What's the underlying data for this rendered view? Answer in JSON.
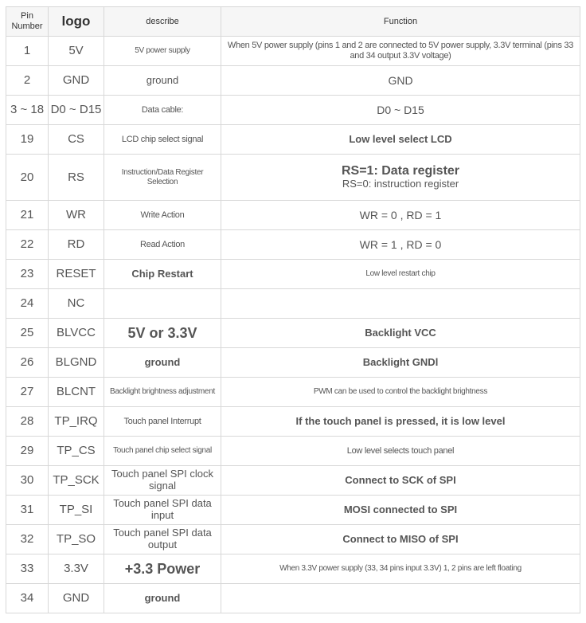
{
  "headers": [
    "Pin Number",
    "logo",
    "describe",
    "Function"
  ],
  "rows": [
    {
      "pin": "1",
      "logo": "5V",
      "describe": "5V power supply",
      "function": "When 5V power supply (pins 1 and 2 are connected to 5V power supply, 3.3V terminal (pins 33 and 34 output 3.3V voltage)"
    },
    {
      "pin": "2",
      "logo": "GND",
      "describe": "ground",
      "function": "GND"
    },
    {
      "pin": "3 ~ 18",
      "logo": "D0 ~ D15",
      "describe": "Data cable:",
      "function": "D0 ~ D15"
    },
    {
      "pin": "19",
      "logo": "CS",
      "describe": "LCD chip select signal",
      "function": "Low level select LCD"
    },
    {
      "pin": "20",
      "logo": "RS",
      "describe": "Instruction/Data Register Selection",
      "function": "RS=1: Data register",
      "function2": "RS=0: instruction register"
    },
    {
      "pin": "21",
      "logo": "WR",
      "describe": "Write Action",
      "function": "WR = 0 , RD = 1"
    },
    {
      "pin": "22",
      "logo": "RD",
      "describe": "Read Action",
      "function": "WR = 1 , RD = 0"
    },
    {
      "pin": "23",
      "logo": "RESET",
      "describe": "Chip Restart",
      "function": "Low level restart chip"
    },
    {
      "pin": "24",
      "logo": "NC",
      "describe": "",
      "function": ""
    },
    {
      "pin": "25",
      "logo": "BLVCC",
      "describe": "5V or 3.3V",
      "function": "Backlight VCC"
    },
    {
      "pin": "26",
      "logo": "BLGND",
      "describe": "ground",
      "function": "Backlight GNDl"
    },
    {
      "pin": "27",
      "logo": "BLCNT",
      "describe": "Backlight brightness adjustment",
      "function": "PWM can be used to control the backlight brightness"
    },
    {
      "pin": "28",
      "logo": "TP_IRQ",
      "describe": "Touch panel Interrupt",
      "function": "If the touch panel is pressed, it is low level"
    },
    {
      "pin": "29",
      "logo": "TP_CS",
      "describe": "Touch panel chip select signal",
      "function": "Low level selects touch panel"
    },
    {
      "pin": "30",
      "logo": "TP_SCK",
      "describe": "Touch panel SPI clock signal",
      "function": "Connect to SCK of SPI"
    },
    {
      "pin": "31",
      "logo": "TP_SI",
      "describe": "Touch panel SPI data input",
      "function": "MOSI connected to SPI"
    },
    {
      "pin": "32",
      "logo": "TP_SO",
      "describe": "Touch panel SPI data output",
      "function": "Connect to MISO of SPI"
    },
    {
      "pin": "33",
      "logo": "3.3V",
      "describe": "+3.3 Power",
      "function": "When 3.3V power supply (33, 34 pins input 3.3V) 1, 2 pins are left floating"
    },
    {
      "pin": "34",
      "logo": "GND",
      "describe": "ground",
      "function": ""
    }
  ]
}
